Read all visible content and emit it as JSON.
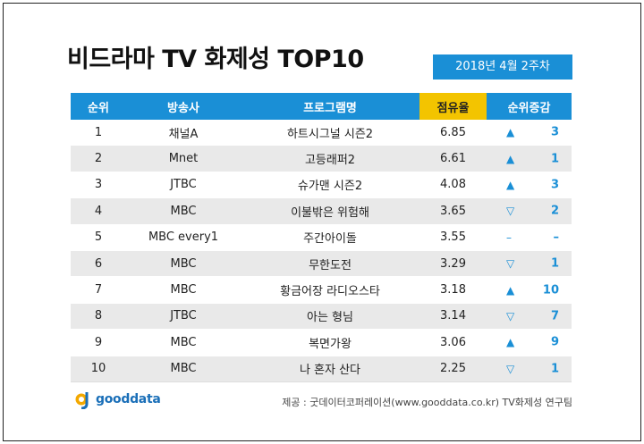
{
  "title": "비드라마 TV 화제성 TOP10",
  "week": "2018년  4월 2주차",
  "headers": {
    "rank": "순위",
    "channel": "방송사",
    "program": "프로그램명",
    "share": "점유율",
    "change": "순위증감"
  },
  "rows": [
    {
      "rank": "1",
      "channel": "채널A",
      "program": "하트시그널 시즌2",
      "share": "6.85",
      "dir": "up",
      "change": "3"
    },
    {
      "rank": "2",
      "channel": "Mnet",
      "program": "고등래퍼2",
      "share": "6.61",
      "dir": "up",
      "change": "1"
    },
    {
      "rank": "3",
      "channel": "JTBC",
      "program": "슈가맨 시즌2",
      "share": "4.08",
      "dir": "up",
      "change": "3"
    },
    {
      "rank": "4",
      "channel": "MBC",
      "program": "이불밖은 위험해",
      "share": "3.65",
      "dir": "down",
      "change": "2"
    },
    {
      "rank": "5",
      "channel": "MBC every1",
      "program": "주간아이돌",
      "share": "3.55",
      "dir": "none",
      "change": "–"
    },
    {
      "rank": "6",
      "channel": "MBC",
      "program": "무한도전",
      "share": "3.29",
      "dir": "down",
      "change": "1"
    },
    {
      "rank": "7",
      "channel": "MBC",
      "program": "황금어장 라디오스타",
      "share": "3.18",
      "dir": "up",
      "change": "10"
    },
    {
      "rank": "8",
      "channel": "JTBC",
      "program": "아는 형님",
      "share": "3.14",
      "dir": "down",
      "change": "7"
    },
    {
      "rank": "9",
      "channel": "MBC",
      "program": "복면가왕",
      "share": "3.06",
      "dir": "up",
      "change": "9"
    },
    {
      "rank": "10",
      "channel": "MBC",
      "program": "나 혼자 산다",
      "share": "2.25",
      "dir": "down",
      "change": "1"
    }
  ],
  "arrows": {
    "up": "▲",
    "down": "▽",
    "none": "–"
  },
  "logo": {
    "text": "gooddata"
  },
  "source": "제공 : 굿데이터코퍼레이션(www.gooddata.co.kr) TV화제성 연구팀",
  "colors": {
    "accent": "#1a8fd6",
    "share_header": "#f3c400",
    "stripe": "#e9e9e9"
  }
}
